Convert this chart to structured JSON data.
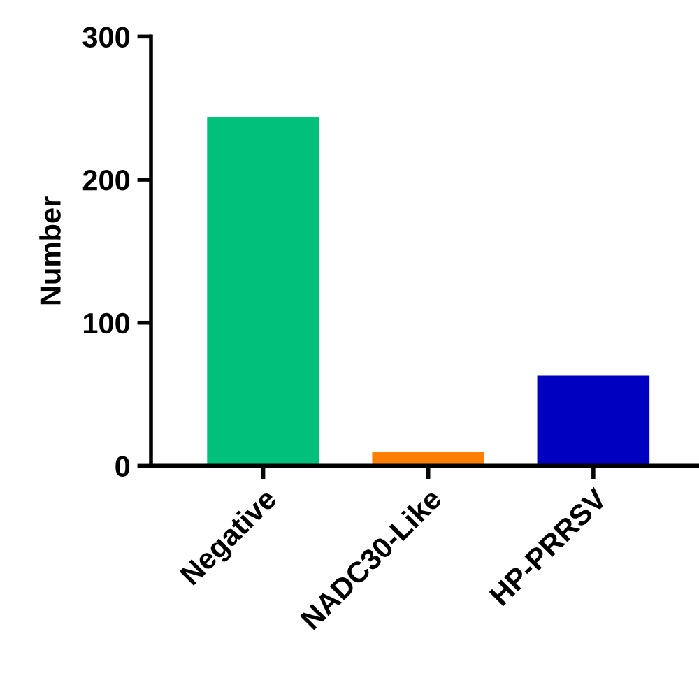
{
  "chart_data": {
    "type": "bar",
    "ylabel": "Number",
    "categories": [
      "Negative",
      "NADC30-Like",
      "HP-PRRSV"
    ],
    "values": [
      244,
      10,
      63
    ],
    "colors": [
      "#00c07a",
      "#ff8000",
      "#0000c0"
    ],
    "ylim": [
      0,
      300
    ],
    "yticks": [
      0,
      100,
      200,
      300
    ],
    "grid": false,
    "legend": false
  }
}
